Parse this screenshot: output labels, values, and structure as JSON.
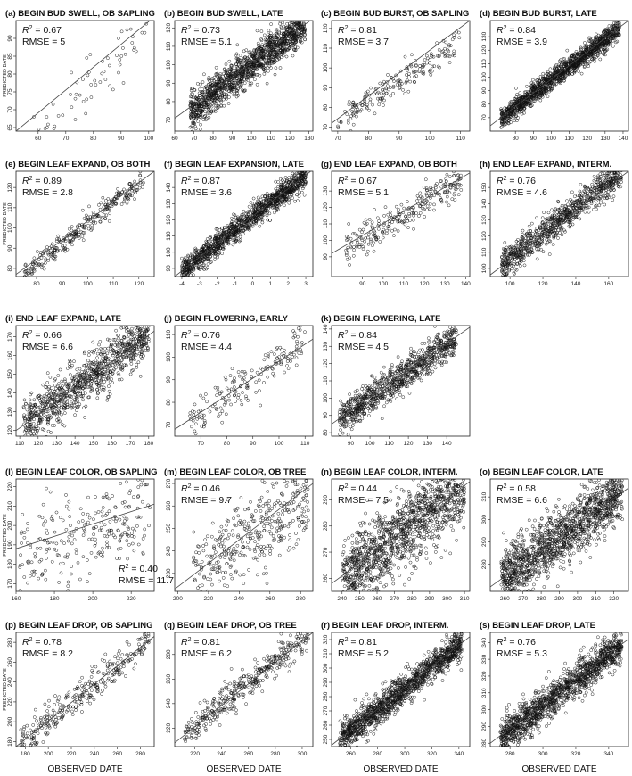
{
  "figure": {
    "x_axis_label": "OBSERVED DATE",
    "y_axis_label": "PREDICTED DATE"
  },
  "chart_data": [
    {
      "type": "scatter",
      "panel": "(a)",
      "title": "(a) BEGIN BUD SWELL, OB SAPLING",
      "r2": "0.67",
      "rmse": "5",
      "stats_position": "top-left",
      "n_points": 90,
      "xlim": [
        52,
        102
      ],
      "ylim": [
        64,
        95
      ],
      "x_ticks": [
        60,
        70,
        80,
        90,
        100
      ],
      "y_ticks": [
        65,
        70,
        75,
        80,
        85,
        90
      ],
      "regression": {
        "x": [
          52,
          102
        ],
        "y": [
          64,
          96
        ]
      },
      "cloud": {
        "slope": 1.0,
        "intercept": -2,
        "sd": 5,
        "x_range": [
          55,
          100
        ]
      },
      "y_label_shown": true,
      "x_label_shown": false
    },
    {
      "type": "scatter",
      "panel": "(b)",
      "title": "(b) BEGIN BUD SWELL, LATE",
      "r2": "0.73",
      "rmse": "5.1",
      "stats_position": "top-left",
      "n_points": 1400,
      "xlim": [
        60,
        132
      ],
      "ylim": [
        64,
        124
      ],
      "x_ticks": [
        60,
        70,
        80,
        90,
        100,
        110,
        120,
        130
      ],
      "y_ticks": [
        70,
        80,
        90,
        100,
        110,
        120
      ],
      "regression": {
        "x": [
          60,
          132
        ],
        "y": [
          71,
          125
        ]
      },
      "cloud": {
        "slope": 0.8,
        "intercept": 20,
        "sd": 5,
        "x_range": [
          68,
          128
        ]
      },
      "y_label_shown": false,
      "x_label_shown": false
    },
    {
      "type": "scatter",
      "panel": "(c)",
      "title": "(c) BEGIN BUD BURST, OB SAPLING",
      "r2": "0.81",
      "rmse": "3.7",
      "stats_position": "top-left",
      "n_points": 200,
      "xlim": [
        68,
        113
      ],
      "ylim": [
        68,
        124
      ],
      "x_ticks": [
        70,
        80,
        90,
        100,
        110
      ],
      "y_ticks": [
        70,
        80,
        90,
        100,
        110,
        120
      ],
      "regression": {
        "x": [
          68,
          113
        ],
        "y": [
          72,
          124
        ]
      },
      "cloud": {
        "slope": 1.0,
        "intercept": 3,
        "sd": 3.7,
        "x_range": [
          70,
          110
        ]
      },
      "y_label_shown": false,
      "x_label_shown": false
    },
    {
      "type": "scatter",
      "panel": "(d)",
      "title": "(d) BEGIN BUD BURST, LATE",
      "r2": "0.84",
      "rmse": "3.9",
      "stats_position": "top-left",
      "n_points": 1400,
      "xlim": [
        66,
        143
      ],
      "ylim": [
        60,
        142
      ],
      "x_ticks": [
        80,
        90,
        100,
        110,
        120,
        130,
        140
      ],
      "y_ticks": [
        70,
        80,
        90,
        100,
        110,
        120,
        130
      ],
      "regression": {
        "x": [
          66,
          143
        ],
        "y": [
          64,
          142
        ]
      },
      "cloud": {
        "slope": 1.0,
        "intercept": -2,
        "sd": 3.9,
        "x_range": [
          72,
          138
        ]
      },
      "y_label_shown": false,
      "x_label_shown": false
    },
    {
      "type": "scatter",
      "panel": "(e)",
      "title": "(e) BEGIN LEAF EXPAND, OB BOTH",
      "r2": "0.89",
      "rmse": "2.8",
      "stats_position": "top-left",
      "n_points": 300,
      "xlim": [
        72,
        126
      ],
      "ylim": [
        76,
        128
      ],
      "x_ticks": [
        80,
        90,
        100,
        110,
        120
      ],
      "y_ticks": [
        80,
        90,
        100,
        110,
        120
      ],
      "regression": {
        "x": [
          72,
          126
        ],
        "y": [
          77,
          128
        ]
      },
      "cloud": {
        "slope": 1.0,
        "intercept": 2,
        "sd": 2.8,
        "x_range": [
          75,
          122
        ]
      },
      "y_label_shown": true,
      "x_label_shown": false
    },
    {
      "type": "scatter",
      "panel": "(f)",
      "title": "(f) BEGIN LEAF EXPANSION, LATE",
      "r2": "0.87",
      "rmse": "3.6",
      "stats_position": "top-left",
      "n_points": 1300,
      "xlim": [
        -4.4,
        3.4
      ],
      "ylim": [
        85,
        150
      ],
      "x_ticks": [
        -4,
        -3,
        -2,
        -1,
        0,
        1,
        2,
        3
      ],
      "y_ticks": [
        90,
        100,
        110,
        120,
        130,
        140
      ],
      "regression": {
        "x": [
          -4.4,
          3.4
        ],
        "y": [
          85,
          151
        ]
      },
      "cloud": {
        "slope": 8.4,
        "intercept": 122,
        "sd": 3.6,
        "x_range": [
          -4,
          3
        ]
      },
      "y_label_shown": false,
      "x_label_shown": false
    },
    {
      "type": "scatter",
      "panel": "(g)",
      "title": "(g) END LEAF EXPAND, OB BOTH",
      "r2": "0.67",
      "rmse": "5.1",
      "stats_position": "top-left",
      "n_points": 260,
      "xlim": [
        75,
        142
      ],
      "ylim": [
        78,
        142
      ],
      "x_ticks": [
        90,
        100,
        110,
        120,
        130,
        140
      ],
      "y_ticks": [
        90,
        100,
        110,
        120,
        130
      ],
      "regression": {
        "x": [
          75,
          142
        ],
        "y": [
          92,
          141
        ]
      },
      "cloud": {
        "slope": 0.75,
        "intercept": 33,
        "sd": 5.1,
        "x_range": [
          82,
          138
        ]
      },
      "y_label_shown": false,
      "x_label_shown": false
    },
    {
      "type": "scatter",
      "panel": "(h)",
      "title": "(h) END LEAF EXPAND, INTERM.",
      "r2": "0.76",
      "rmse": "4.6",
      "stats_position": "top-left",
      "n_points": 900,
      "xlim": [
        88,
        172
      ],
      "ylim": [
        95,
        160
      ],
      "x_ticks": [
        100,
        120,
        140,
        160
      ],
      "y_ticks": [
        100,
        110,
        120,
        130,
        140,
        150
      ],
      "regression": {
        "x": [
          88,
          172
        ],
        "y": [
          96,
          160
        ]
      },
      "cloud": {
        "slope": 0.78,
        "intercept": 28,
        "sd": 4.6,
        "x_range": [
          95,
          168
        ]
      },
      "y_label_shown": false,
      "x_label_shown": false
    },
    {
      "type": "scatter",
      "panel": "(i)",
      "title": "(i) END LEAF EXPAND, LATE",
      "r2": "0.66",
      "rmse": "6.6",
      "stats_position": "top-left",
      "n_points": 950,
      "xlim": [
        108,
        183
      ],
      "ylim": [
        117,
        176
      ],
      "x_ticks": [
        110,
        120,
        130,
        140,
        150,
        160,
        170,
        180
      ],
      "y_ticks": [
        120,
        130,
        140,
        150,
        160,
        170
      ],
      "regression": {
        "x": [
          108,
          183
        ],
        "y": [
          120,
          173
        ]
      },
      "cloud": {
        "slope": 0.72,
        "intercept": 42,
        "sd": 6.6,
        "x_range": [
          112,
          180
        ]
      },
      "y_label_shown": false,
      "x_label_shown": false
    },
    {
      "type": "scatter",
      "panel": "(j)",
      "title": "(j) BEGIN FLOWERING, EARLY",
      "r2": "0.76",
      "rmse": "4.4",
      "stats_position": "top-left",
      "n_points": 180,
      "xlim": [
        60,
        113
      ],
      "ylim": [
        65,
        114
      ],
      "x_ticks": [
        70,
        80,
        90,
        100,
        110
      ],
      "y_ticks": [
        70,
        80,
        90,
        100,
        110
      ],
      "regression": {
        "x": [
          60,
          113
        ],
        "y": [
          68,
          108
        ]
      },
      "cloud": {
        "slope": 0.78,
        "intercept": 21,
        "sd": 4.4,
        "x_range": [
          65,
          110
        ]
      },
      "y_label_shown": false,
      "x_label_shown": false
    },
    {
      "type": "scatter",
      "panel": "(k)",
      "title": "(k) BEGIN FLOWERING, LATE",
      "r2": "0.84",
      "rmse": "4.5",
      "stats_position": "top-left",
      "n_points": 900,
      "xlim": [
        80,
        152
      ],
      "ylim": [
        78,
        142
      ],
      "x_ticks": [
        90,
        100,
        110,
        120,
        130,
        140
      ],
      "y_ticks": [
        80,
        90,
        100,
        110,
        120,
        130,
        140
      ],
      "regression": {
        "x": [
          80,
          152
        ],
        "y": [
          85,
          141
        ]
      },
      "cloud": {
        "slope": 0.78,
        "intercept": 22,
        "sd": 4.5,
        "x_range": [
          84,
          145
        ]
      },
      "y_label_shown": false,
      "x_label_shown": false
    },
    {
      "type": "scatter",
      "panel": "(l)",
      "title": "(l) BEGIN LEAF COLOR, OB SAPLING",
      "r2": "0.40",
      "rmse": "11.7",
      "stats_position": "bottom-right",
      "n_points": 260,
      "xlim": [
        160,
        232
      ],
      "ylim": [
        166,
        224
      ],
      "x_ticks": [
        160,
        180,
        200,
        220
      ],
      "y_ticks": [
        170,
        180,
        190,
        200,
        210,
        220
      ],
      "regression": {
        "x": [
          160,
          232
        ],
        "y": [
          188,
          211
        ]
      },
      "cloud": {
        "slope": 0.4,
        "intercept": 116,
        "sd": 11.7,
        "x_range": [
          162,
          230
        ]
      },
      "y_label_shown": true,
      "x_label_shown": false
    },
    {
      "type": "scatter",
      "panel": "(m)",
      "title": "(m) BEGIN LEAF COLOR, OB TREE",
      "r2": "0.46",
      "rmse": "9.7",
      "stats_position": "top-left",
      "n_points": 400,
      "xlim": [
        198,
        288
      ],
      "ylim": [
        222,
        272
      ],
      "x_ticks": [
        200,
        220,
        240,
        260,
        280
      ],
      "y_ticks": [
        230,
        240,
        250,
        260,
        270
      ],
      "regression": {
        "x": [
          198,
          288
        ],
        "y": [
          223,
          270
        ]
      },
      "cloud": {
        "slope": 0.5,
        "intercept": 123,
        "sd": 9.7,
        "x_range": [
          210,
          285
        ]
      },
      "y_label_shown": false,
      "x_label_shown": false
    },
    {
      "type": "scatter",
      "panel": "(n)",
      "title": "(n) BEGIN LEAF COLOR, INTERM.",
      "r2": "0.44",
      "rmse": "7.5",
      "stats_position": "top-left",
      "n_points": 1300,
      "xlim": [
        234,
        313
      ],
      "ylim": [
        255,
        298
      ],
      "x_ticks": [
        240,
        250,
        260,
        270,
        280,
        290,
        300,
        310
      ],
      "y_ticks": [
        260,
        270,
        280,
        290
      ],
      "regression": {
        "x": [
          234,
          313
        ],
        "y": [
          258,
          297
        ]
      },
      "cloud": {
        "slope": 0.5,
        "intercept": 140,
        "sd": 7.5,
        "x_range": [
          240,
          310
        ]
      },
      "y_label_shown": false,
      "x_label_shown": false
    },
    {
      "type": "scatter",
      "panel": "(o)",
      "title": "(o) BEGIN LEAF COLOR, LATE",
      "r2": "0.58",
      "rmse": "6.6",
      "stats_position": "top-left",
      "n_points": 1400,
      "xlim": [
        252,
        328
      ],
      "ylim": [
        268,
        318
      ],
      "x_ticks": [
        260,
        270,
        280,
        290,
        300,
        310,
        320
      ],
      "y_ticks": [
        280,
        290,
        300,
        310
      ],
      "regression": {
        "x": [
          252,
          328
        ],
        "y": [
          270,
          314
        ]
      },
      "cloud": {
        "slope": 0.58,
        "intercept": 124,
        "sd": 6.6,
        "x_range": [
          258,
          325
        ]
      },
      "y_label_shown": false,
      "x_label_shown": false
    },
    {
      "type": "scatter",
      "panel": "(p)",
      "title": "(p) BEGIN LEAF DROP, OB SAPLING",
      "r2": "0.78",
      "rmse": "8.2",
      "stats_position": "top-left",
      "n_points": 300,
      "xlim": [
        172,
        292
      ],
      "ylim": [
        175,
        290
      ],
      "x_ticks": [
        180,
        200,
        220,
        240,
        260,
        280
      ],
      "y_ticks": [
        180,
        200,
        220,
        240,
        260,
        280
      ],
      "regression": {
        "x": [
          172,
          292
        ],
        "y": [
          175,
          286
        ]
      },
      "cloud": {
        "slope": 0.92,
        "intercept": 17,
        "sd": 8.2,
        "x_range": [
          176,
          288
        ]
      },
      "y_label_shown": true,
      "x_label_shown": true
    },
    {
      "type": "scatter",
      "panel": "(q)",
      "title": "(q) BEGIN LEAF DROP, OB TREE",
      "r2": "0.81",
      "rmse": "6.2",
      "stats_position": "top-left",
      "n_points": 400,
      "xlim": [
        205,
        308
      ],
      "ylim": [
        205,
        298
      ],
      "x_ticks": [
        220,
        240,
        260,
        280,
        300
      ],
      "y_ticks": [
        220,
        240,
        260,
        280
      ],
      "regression": {
        "x": [
          205,
          308
        ],
        "y": [
          208,
          298
        ]
      },
      "cloud": {
        "slope": 0.88,
        "intercept": 28,
        "sd": 6.2,
        "x_range": [
          212,
          305
        ]
      },
      "y_label_shown": false,
      "x_label_shown": true
    },
    {
      "type": "scatter",
      "panel": "(r)",
      "title": "(r) BEGIN LEAF DROP, INTERM.",
      "r2": "0.81",
      "rmse": "5.2",
      "stats_position": "top-left",
      "n_points": 1400,
      "xlim": [
        246,
        348
      ],
      "ylim": [
        245,
        325
      ],
      "x_ticks": [
        260,
        280,
        300,
        320,
        340
      ],
      "y_ticks": [
        250,
        260,
        270,
        280,
        290,
        300,
        310,
        320
      ],
      "regression": {
        "x": [
          246,
          348
        ],
        "y": [
          246,
          322
        ]
      },
      "cloud": {
        "slope": 0.75,
        "intercept": 61,
        "sd": 5.2,
        "x_range": [
          252,
          342
        ]
      },
      "y_label_shown": false,
      "x_label_shown": true
    },
    {
      "type": "scatter",
      "panel": "(s)",
      "title": "(s) BEGIN LEAF DROP, LATE",
      "r2": "0.76",
      "rmse": "5.3",
      "stats_position": "top-left",
      "n_points": 1400,
      "xlim": [
        268,
        352
      ],
      "ylim": [
        278,
        346
      ],
      "x_ticks": [
        280,
        300,
        320,
        340
      ],
      "y_ticks": [
        280,
        290,
        300,
        310,
        320,
        330,
        340
      ],
      "regression": {
        "x": [
          268,
          352
        ],
        "y": [
          280,
          342
        ]
      },
      "cloud": {
        "slope": 0.76,
        "intercept": 74,
        "sd": 5.3,
        "x_range": [
          274,
          348
        ]
      },
      "y_label_shown": false,
      "x_label_shown": true
    }
  ]
}
